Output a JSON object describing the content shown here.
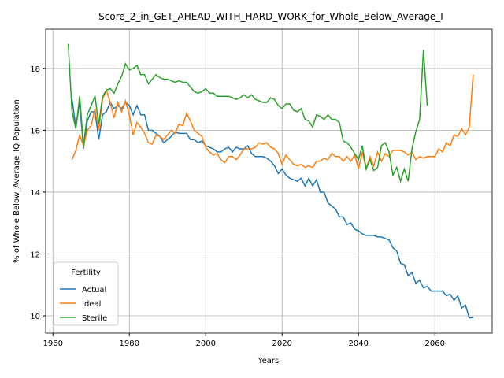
{
  "chart_data": {
    "type": "line",
    "title": "Score_2_in_GET_AHEAD_WITH_HARD_WORK_for_Whole_Below_Average_I",
    "x_label": "Years",
    "y_label": "% of Whole Below_Average_IQ Population",
    "legend_title": "Fertility",
    "legend_position": "lower left",
    "grid": true,
    "xlim": [
      1958.1,
      2075
    ],
    "ylim": [
      9.44,
      19.27
    ],
    "xticks": [
      1960,
      1980,
      2000,
      2020,
      2040,
      2060
    ],
    "yticks": [
      10,
      12,
      14,
      16,
      18
    ],
    "x": [
      1964,
      1965,
      1966,
      1967,
      1968,
      1969,
      1970,
      1971,
      1972,
      1973,
      1974,
      1975,
      1976,
      1977,
      1978,
      1979,
      1980,
      1981,
      1982,
      1983,
      1984,
      1985,
      1986,
      1987,
      1988,
      1989,
      1990,
      1991,
      1992,
      1993,
      1994,
      1995,
      1996,
      1997,
      1998,
      1999,
      2000,
      2001,
      2002,
      2003,
      2004,
      2005,
      2006,
      2007,
      2008,
      2009,
      2010,
      2011,
      2012,
      2013,
      2014,
      2015,
      2016,
      2017,
      2018,
      2019,
      2020,
      2021,
      2022,
      2023,
      2024,
      2025,
      2026,
      2027,
      2028,
      2029,
      2030,
      2031,
      2032,
      2033,
      2034,
      2035,
      2036,
      2037,
      2038,
      2039,
      2040,
      2041,
      2042,
      2043,
      2044,
      2045,
      2046,
      2047,
      2048,
      2049,
      2050,
      2051,
      2052,
      2053,
      2054,
      2055,
      2056,
      2057,
      2058,
      2059,
      2060,
      2061,
      2062,
      2063,
      2064,
      2065,
      2066,
      2067,
      2068,
      2069,
      2070
    ],
    "series": [
      {
        "name": "Actual",
        "color": "#1f77b4",
        "values": [
          null,
          17.0,
          16.1,
          16.9,
          15.4,
          16.3,
          16.6,
          16.6,
          15.7,
          16.5,
          16.6,
          16.9,
          16.7,
          16.8,
          16.7,
          16.9,
          16.8,
          16.5,
          16.8,
          16.5,
          16.5,
          16.0,
          16.0,
          15.9,
          15.8,
          15.6,
          15.7,
          15.8,
          15.95,
          15.9,
          15.9,
          15.9,
          15.7,
          15.7,
          15.6,
          15.65,
          15.5,
          15.45,
          15.4,
          15.3,
          15.3,
          15.4,
          15.45,
          15.3,
          15.45,
          15.4,
          15.4,
          15.5,
          15.25,
          15.15,
          15.15,
          15.15,
          15.1,
          15.0,
          14.85,
          14.6,
          14.75,
          14.55,
          14.45,
          14.4,
          14.35,
          14.45,
          14.2,
          14.45,
          14.2,
          14.4,
          14.0,
          14.0,
          13.65,
          13.55,
          13.45,
          13.2,
          13.2,
          12.95,
          13.0,
          12.8,
          12.75,
          12.65,
          12.6,
          12.6,
          12.6,
          12.55,
          12.55,
          12.5,
          12.45,
          12.2,
          12.1,
          11.7,
          11.65,
          11.3,
          11.4,
          11.05,
          11.15,
          10.9,
          10.95,
          10.8,
          10.8,
          10.8,
          10.8,
          10.65,
          10.7,
          10.5,
          10.65,
          10.25,
          10.35,
          9.93,
          9.95
        ]
      },
      {
        "name": "Ideal",
        "color": "#ff7f0e",
        "values": [
          null,
          15.05,
          15.35,
          15.85,
          15.5,
          16.0,
          16.15,
          16.7,
          16.0,
          17.0,
          17.3,
          16.9,
          16.4,
          16.9,
          16.6,
          16.95,
          16.5,
          15.85,
          16.25,
          16.1,
          15.9,
          15.6,
          15.55,
          15.85,
          15.8,
          15.7,
          15.85,
          16.0,
          15.9,
          16.2,
          16.15,
          16.55,
          16.3,
          16.0,
          15.9,
          15.8,
          15.45,
          15.3,
          15.2,
          15.25,
          15.05,
          14.95,
          15.15,
          15.15,
          15.05,
          15.2,
          15.4,
          15.4,
          15.4,
          15.45,
          15.6,
          15.55,
          15.6,
          15.45,
          15.4,
          15.25,
          14.9,
          15.2,
          15.05,
          14.9,
          14.85,
          14.9,
          14.8,
          14.85,
          14.8,
          15.0,
          15.0,
          15.1,
          15.05,
          15.25,
          15.15,
          15.15,
          15.0,
          15.15,
          15.0,
          15.2,
          14.75,
          15.3,
          14.75,
          15.15,
          14.85,
          15.3,
          15.0,
          15.25,
          15.15,
          15.35,
          15.35,
          15.35,
          15.3,
          15.2,
          15.3,
          15.05,
          15.15,
          15.1,
          15.15,
          15.15,
          15.15,
          15.4,
          15.3,
          15.6,
          15.5,
          15.85,
          15.8,
          16.05,
          15.85,
          16.1,
          17.8
        ]
      },
      {
        "name": "Sterile",
        "color": "#2ca02c",
        "values": [
          18.8,
          16.6,
          16.05,
          17.1,
          15.5,
          16.5,
          16.8,
          17.1,
          16.2,
          17.1,
          17.3,
          17.35,
          17.2,
          17.5,
          17.75,
          18.15,
          17.95,
          18.0,
          18.1,
          17.8,
          17.8,
          17.5,
          17.65,
          17.8,
          17.7,
          17.65,
          17.65,
          17.6,
          17.55,
          17.6,
          17.55,
          17.55,
          17.4,
          17.25,
          17.2,
          17.25,
          17.35,
          17.2,
          17.2,
          17.1,
          17.1,
          17.1,
          17.1,
          17.05,
          17.0,
          17.05,
          17.15,
          17.05,
          17.15,
          17.0,
          16.95,
          16.9,
          16.9,
          17.05,
          17.0,
          16.8,
          16.7,
          16.85,
          16.85,
          16.65,
          16.6,
          16.7,
          16.35,
          16.3,
          16.1,
          16.5,
          16.45,
          16.35,
          16.5,
          16.35,
          16.35,
          16.25,
          15.65,
          15.6,
          15.45,
          15.25,
          15.05,
          15.5,
          14.75,
          15.05,
          14.7,
          14.8,
          15.5,
          15.6,
          15.3,
          14.55,
          14.8,
          14.35,
          14.75,
          14.35,
          15.4,
          15.95,
          16.35,
          18.6,
          16.8,
          null,
          null,
          null,
          null,
          null,
          null,
          null,
          null,
          null,
          null,
          null,
          null
        ]
      }
    ]
  }
}
